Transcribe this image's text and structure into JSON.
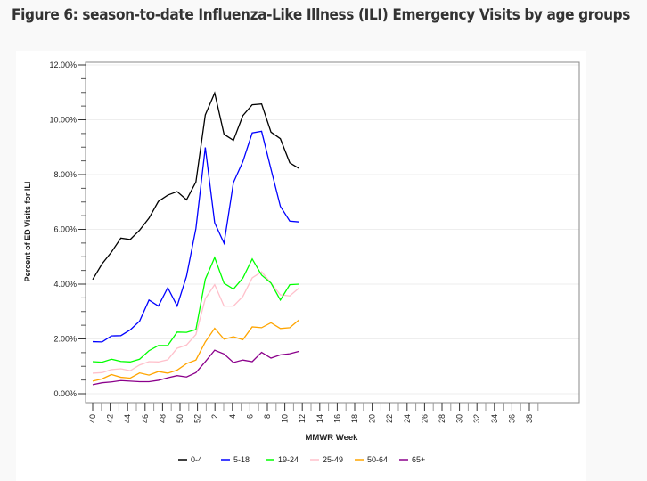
{
  "title": "Figure 6: season-to-date Influenza-Like Illness (ILI) Emergency Visits by age groups",
  "chart_data": {
    "type": "line",
    "title": "",
    "xlabel": "MMWR Week",
    "ylabel": "Percent of ED Visits for ILI",
    "ylim": [
      0,
      12
    ],
    "y_ticks": [
      "0.00%",
      "2.00%",
      "4.00%",
      "6.00%",
      "8.00%",
      "10.00%",
      "12.00%"
    ],
    "x_tick_labels": [
      "40",
      "42",
      "44",
      "46",
      "48",
      "50",
      "52",
      "2",
      "4",
      "6",
      "8",
      "10",
      "12",
      "14",
      "16",
      "18",
      "20",
      "22",
      "24",
      "26",
      "28",
      "30",
      "32",
      "34",
      "36",
      "38"
    ],
    "x": [
      40,
      41,
      42,
      43,
      44,
      45,
      46,
      47,
      48,
      49,
      50,
      51,
      52,
      1,
      2,
      3,
      4,
      5,
      6,
      7,
      8,
      9,
      10
    ],
    "grid": "horizontal",
    "legend_position": "bottom",
    "series": [
      {
        "name": "0-4",
        "color": "#000000",
        "values": [
          4.17,
          4.74,
          5.17,
          5.68,
          5.63,
          5.97,
          6.41,
          7.02,
          7.25,
          7.38,
          7.08,
          7.73,
          10.18,
          10.98,
          9.47,
          9.25,
          10.15,
          10.55,
          10.58,
          9.55,
          9.31,
          8.43,
          8.22
        ]
      },
      {
        "name": "5-18",
        "color": "#0000ff",
        "values": [
          1.9,
          1.89,
          2.11,
          2.12,
          2.33,
          2.65,
          3.42,
          3.2,
          3.87,
          3.2,
          4.29,
          6.03,
          8.99,
          6.24,
          5.49,
          7.71,
          8.47,
          9.52,
          9.58,
          8.2,
          6.84,
          6.3,
          6.27
        ]
      },
      {
        "name": "19-24",
        "color": "#00ff00",
        "values": [
          1.17,
          1.15,
          1.26,
          1.18,
          1.16,
          1.26,
          1.57,
          1.76,
          1.76,
          2.25,
          2.24,
          2.34,
          4.18,
          4.97,
          4.03,
          3.82,
          4.22,
          4.92,
          4.33,
          4.04,
          3.42,
          3.98,
          4.0
        ]
      },
      {
        "name": "25-49",
        "color": "#ffc0cb",
        "values": [
          0.75,
          0.77,
          0.88,
          0.91,
          0.84,
          1.05,
          1.17,
          1.16,
          1.24,
          1.66,
          1.78,
          2.16,
          3.47,
          3.98,
          3.2,
          3.2,
          3.55,
          4.23,
          4.45,
          4.04,
          3.61,
          3.57,
          3.86
        ]
      },
      {
        "name": "50-64",
        "color": "#ffa500",
        "values": [
          0.46,
          0.54,
          0.7,
          0.6,
          0.57,
          0.76,
          0.68,
          0.81,
          0.75,
          0.86,
          1.1,
          1.23,
          1.89,
          2.39,
          1.99,
          2.08,
          1.97,
          2.44,
          2.41,
          2.59,
          2.38,
          2.41,
          2.7
        ]
      },
      {
        "name": "65+",
        "color": "#8b008b",
        "values": [
          0.33,
          0.4,
          0.43,
          0.48,
          0.46,
          0.44,
          0.44,
          0.49,
          0.58,
          0.66,
          0.61,
          0.77,
          1.17,
          1.59,
          1.45,
          1.14,
          1.23,
          1.17,
          1.51,
          1.3,
          1.42,
          1.46,
          1.55
        ]
      }
    ]
  }
}
